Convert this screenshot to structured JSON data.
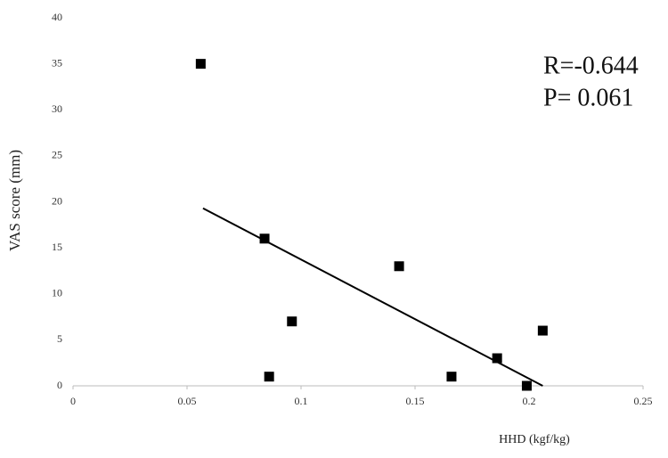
{
  "chart_data": {
    "type": "scatter",
    "x_label": "HHD (kgf/kg)",
    "y_label": "VAS score (mm)",
    "annotations": [
      "R=-0.644",
      "P= 0.061"
    ],
    "series": [
      {
        "color": "#000000",
        "x": [
          0.056,
          0.084,
          0.086,
          0.096,
          0.143,
          0.166,
          0.186,
          0.199,
          0.206
        ],
        "values": [
          35,
          16,
          1,
          7,
          13,
          1,
          3,
          0,
          6
        ]
      }
    ],
    "trend_line": {
      "color": "#000000",
      "x": [
        0.057,
        0.206
      ],
      "values": [
        19.3,
        0
      ]
    },
    "xlim": [
      0,
      0.25
    ],
    "xticks": [
      0,
      0.05,
      0.1,
      0.15,
      0.2,
      0.25
    ],
    "ylim": [
      0,
      40
    ],
    "yticks": [
      0,
      5,
      10,
      15,
      20,
      25,
      30,
      35,
      40
    ],
    "grid": false
  }
}
